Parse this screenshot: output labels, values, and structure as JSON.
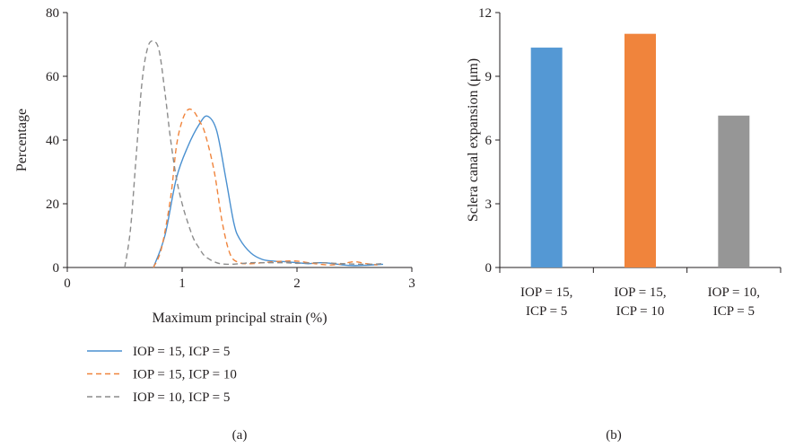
{
  "chart_data": [
    {
      "type": "line",
      "panel_label": "(a)",
      "title": "",
      "xlabel": "Maximum principal strain (%)",
      "ylabel": "Percentage",
      "xlim": [
        0,
        3
      ],
      "ylim": [
        0,
        80
      ],
      "xticks": [
        "0",
        "1",
        "2",
        "3"
      ],
      "yticks": [
        "0",
        "20",
        "40",
        "60",
        "80"
      ],
      "grid": false,
      "legend_position": "bottom-left",
      "series": [
        {
          "name": "IOP = 15, ICP = 5",
          "color": "#4a90d0",
          "dash": "solid",
          "x": [
            0.75,
            0.85,
            0.95,
            1.05,
            1.15,
            1.22,
            1.3,
            1.38,
            1.45,
            1.5,
            1.6,
            1.7,
            1.8,
            1.9,
            2.0,
            2.1,
            2.2,
            2.3,
            2.4,
            2.5,
            2.6,
            2.7,
            2.75
          ],
          "y": [
            0,
            10,
            28,
            38,
            45,
            47.5,
            43,
            28,
            14,
            9,
            4.5,
            2.5,
            2,
            1.8,
            1.5,
            1.2,
            1.5,
            1.3,
            0.8,
            0.6,
            0.7,
            0.9,
            1.0
          ]
        },
        {
          "name": "IOP = 15, ICP = 10",
          "color": "#f0843c",
          "dash": "dashed",
          "x": [
            0.75,
            0.82,
            0.9,
            0.95,
            1.0,
            1.05,
            1.1,
            1.15,
            1.2,
            1.28,
            1.35,
            1.42,
            1.5,
            1.6,
            1.7,
            1.8,
            1.9,
            2.0,
            2.1,
            2.2,
            2.3,
            2.4,
            2.5,
            2.6,
            2.7
          ],
          "y": [
            0,
            6,
            22,
            38,
            46,
            49.5,
            49,
            46,
            42,
            30,
            14,
            4,
            1.5,
            1.2,
            1.5,
            1.8,
            2,
            2,
            1.5,
            1,
            0.8,
            1.2,
            1.8,
            1.2,
            0.8
          ]
        },
        {
          "name": "IOP = 10, ICP = 5",
          "color": "#8c8c8c",
          "dash": "dashed",
          "x": [
            0.5,
            0.55,
            0.6,
            0.65,
            0.7,
            0.75,
            0.8,
            0.85,
            0.9,
            0.95,
            1.0,
            1.05,
            1.1,
            1.15,
            1.2,
            1.3,
            1.4,
            1.5,
            1.6,
            1.7,
            1.8,
            1.9,
            2.0,
            2.2,
            2.4,
            2.6,
            2.75
          ],
          "y": [
            0,
            12,
            35,
            58,
            69,
            71,
            68,
            55,
            40,
            28,
            20,
            14,
            9,
            6,
            3.5,
            1.5,
            1,
            1.2,
            1.5,
            1.5,
            1.5,
            1.5,
            1.3,
            1.5,
            1.2,
            1,
            1.2
          ]
        }
      ]
    },
    {
      "type": "bar",
      "panel_label": "(b)",
      "title": "",
      "xlabel": "",
      "ylabel": "Sclera canal expansion (μm)",
      "ylim": [
        0,
        12
      ],
      "yticks": [
        "0",
        "3",
        "6",
        "9",
        "12"
      ],
      "grid": false,
      "categories": [
        [
          "IOP = 15,",
          "ICP = 5"
        ],
        [
          "IOP = 15,",
          "ICP = 10"
        ],
        [
          "IOP = 10,",
          "ICP = 5"
        ]
      ],
      "values": [
        10.35,
        11.0,
        7.15
      ],
      "colors": [
        "#5498d4",
        "#f0843c",
        "#969696"
      ]
    }
  ]
}
